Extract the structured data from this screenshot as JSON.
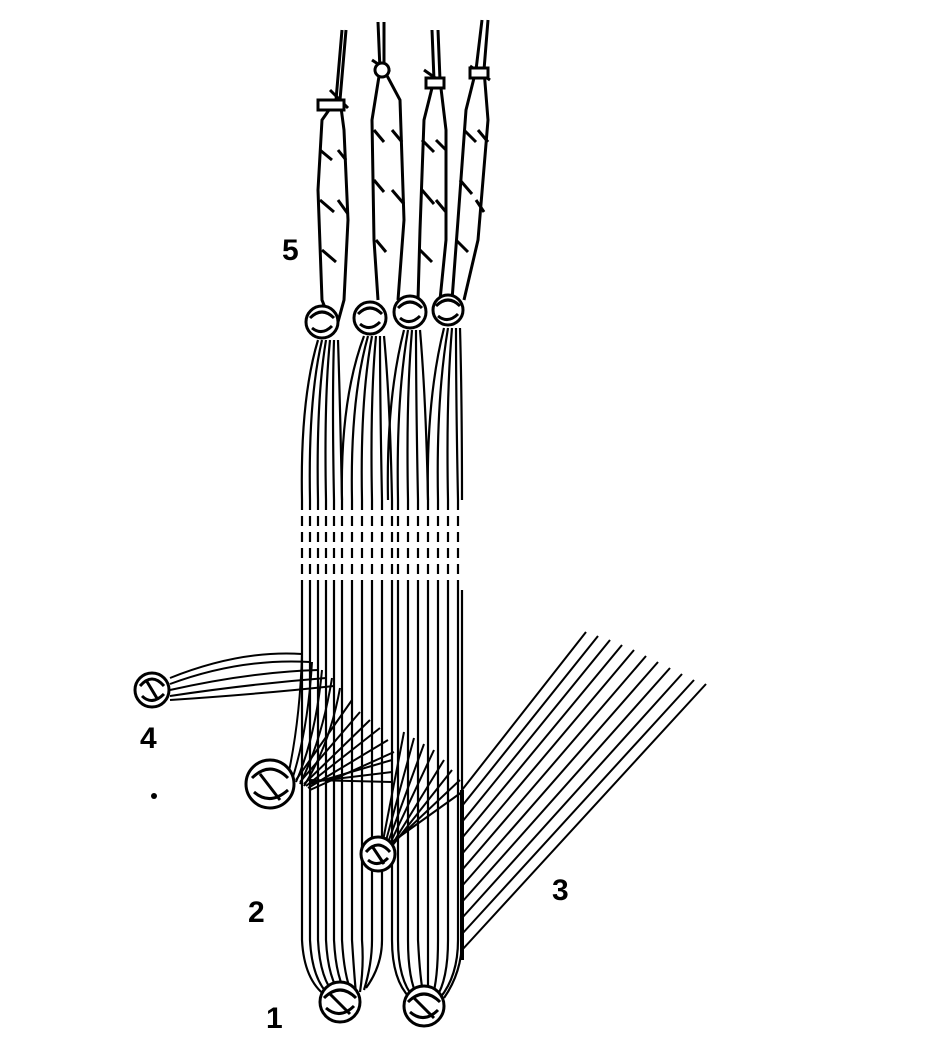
{
  "figure": {
    "labels": {
      "l1": "1",
      "l2": "2",
      "l3": "3",
      "l4": "4",
      "l5": "5"
    }
  },
  "colors": {
    "ink": "#000000",
    "paper": "#ffffff"
  }
}
